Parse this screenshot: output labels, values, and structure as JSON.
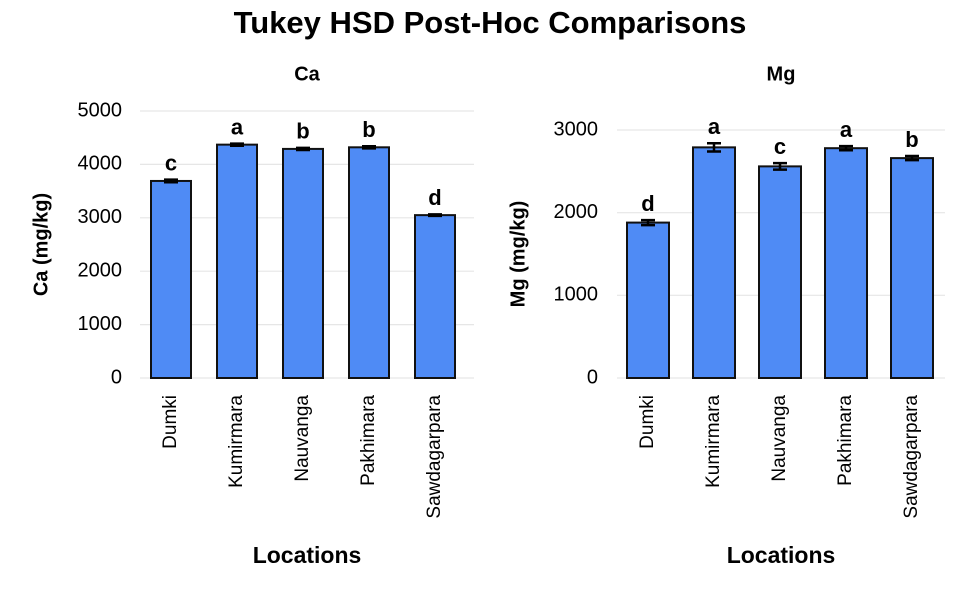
{
  "title": "Tukey HSD Post-Hoc Comparisons",
  "chart_data": [
    {
      "type": "bar",
      "title": "Ca",
      "x_label": "Locations",
      "y_label": "Ca (mg/kg)",
      "categories": [
        "Dumki",
        "Kumirmara",
        "Nauvanga",
        "Pakhimara",
        "Sawdagarpara"
      ],
      "values": [
        3690,
        4370,
        4290,
        4320,
        3050
      ],
      "errors": [
        25,
        20,
        20,
        20,
        15
      ],
      "letters": [
        "c",
        "a",
        "b",
        "b",
        "d"
      ],
      "color": "#4f8bf5",
      "ylim": [
        0,
        5000
      ],
      "yticks": [
        0,
        1000,
        2000,
        3000,
        4000,
        5000
      ],
      "grid": true
    },
    {
      "type": "bar",
      "title": "Mg",
      "x_label": "Locations",
      "y_label": "Mg (mg/kg)",
      "categories": [
        "Dumki",
        "Kumirmara",
        "Nauvanga",
        "Pakhimara",
        "Sawdagarpara"
      ],
      "values": [
        1880,
        2790,
        2560,
        2780,
        2660
      ],
      "errors": [
        30,
        50,
        40,
        25,
        25
      ],
      "letters": [
        "d",
        "a",
        "c",
        "a",
        "b"
      ],
      "color": "#4f8bf5",
      "ylim": [
        0,
        3000
      ],
      "yticks": [
        0,
        1000,
        2000,
        3000
      ],
      "grid": true
    }
  ]
}
